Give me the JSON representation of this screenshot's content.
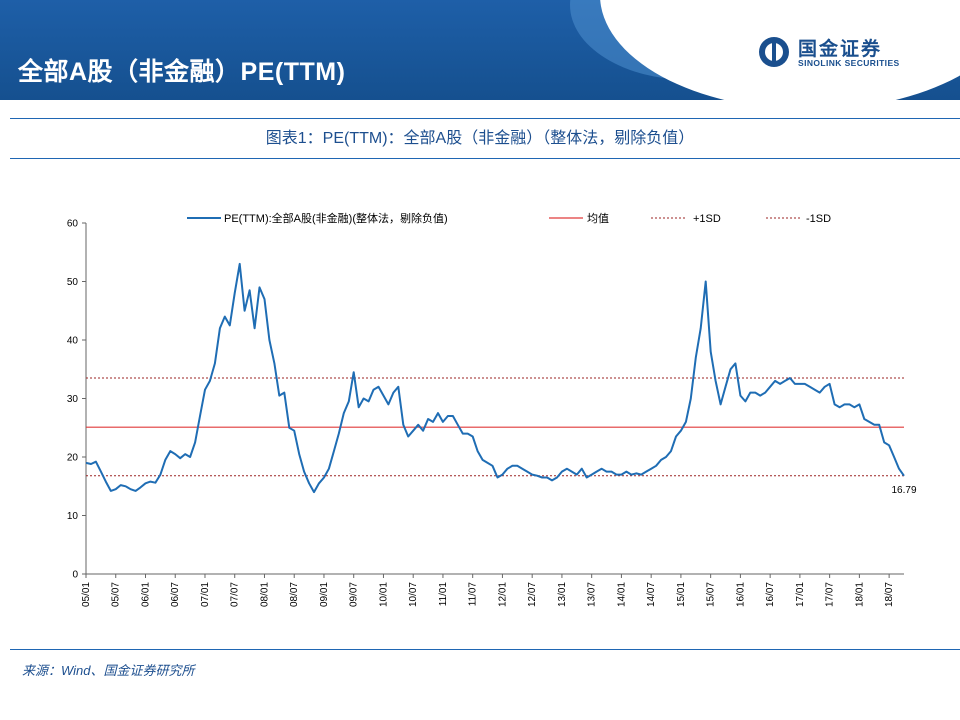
{
  "header": {
    "title": "全部A股（非金融）PE(TTM)",
    "logo_cn": "国金证券",
    "logo_en": "SINOLINK SECURITIES"
  },
  "source_note": "来源：Wind、国金证券研究所",
  "colors": {
    "series": "#1f6db4",
    "mean": "#e03a3a",
    "sd": "#9b2323",
    "banner": "#1e5fa8"
  },
  "chart_data": {
    "type": "line",
    "title": "图表1：PE(TTM)：全部A股（非金融）（整体法，剔除负值）",
    "xlabel": "",
    "ylabel": "",
    "ylim": [
      0,
      60
    ],
    "yticks": [
      0,
      10,
      20,
      30,
      40,
      50,
      60
    ],
    "x_range": [
      "2005-01",
      "2018-10"
    ],
    "xticks": [
      "05/01",
      "05/07",
      "06/01",
      "06/07",
      "07/01",
      "07/07",
      "08/01",
      "08/07",
      "09/01",
      "09/07",
      "10/01",
      "10/07",
      "11/01",
      "11/07",
      "12/01",
      "12/07",
      "13/01",
      "13/07",
      "14/01",
      "14/07",
      "15/01",
      "15/07",
      "16/01",
      "16/07",
      "17/01",
      "17/07",
      "18/01",
      "18/07"
    ],
    "legend": {
      "placement": "top",
      "entries": [
        "PE(TTM):全部A股(非金融)(整体法，剔除负值)",
        "均值",
        "+1SD",
        "-1SD"
      ]
    },
    "reference_lines": {
      "mean": 25.1,
      "plus_1sd": 33.5,
      "minus_1sd": 16.8
    },
    "last_value_label": "16.79",
    "series": [
      {
        "name": "PE(TTM):全部A股(非金融)(整体法，剔除负值)",
        "points": [
          [
            "2005-01",
            19.0
          ],
          [
            "2005-02",
            18.8
          ],
          [
            "2005-03",
            19.2
          ],
          [
            "2005-04",
            17.5
          ],
          [
            "2005-05",
            15.8
          ],
          [
            "2005-06",
            14.2
          ],
          [
            "2005-07",
            14.5
          ],
          [
            "2005-08",
            15.2
          ],
          [
            "2005-09",
            15.0
          ],
          [
            "2005-10",
            14.5
          ],
          [
            "2005-11",
            14.2
          ],
          [
            "2005-12",
            14.8
          ],
          [
            "2006-01",
            15.5
          ],
          [
            "2006-02",
            15.8
          ],
          [
            "2006-03",
            15.6
          ],
          [
            "2006-04",
            17.0
          ],
          [
            "2006-05",
            19.5
          ],
          [
            "2006-06",
            21.0
          ],
          [
            "2006-07",
            20.5
          ],
          [
            "2006-08",
            19.8
          ],
          [
            "2006-09",
            20.5
          ],
          [
            "2006-10",
            20.0
          ],
          [
            "2006-11",
            22.5
          ],
          [
            "2006-12",
            27.0
          ],
          [
            "2007-01",
            31.5
          ],
          [
            "2007-02",
            33.0
          ],
          [
            "2007-03",
            36.0
          ],
          [
            "2007-04",
            42.0
          ],
          [
            "2007-05",
            44.0
          ],
          [
            "2007-06",
            42.5
          ],
          [
            "2007-07",
            48.0
          ],
          [
            "2007-08",
            53.0
          ],
          [
            "2007-09",
            45.0
          ],
          [
            "2007-10",
            48.5
          ],
          [
            "2007-11",
            42.0
          ],
          [
            "2007-12",
            49.0
          ],
          [
            "2008-01",
            47.0
          ],
          [
            "2008-02",
            40.0
          ],
          [
            "2008-03",
            36.0
          ],
          [
            "2008-04",
            30.5
          ],
          [
            "2008-05",
            31.0
          ],
          [
            "2008-06",
            25.0
          ],
          [
            "2008-07",
            24.5
          ],
          [
            "2008-08",
            20.5
          ],
          [
            "2008-09",
            17.5
          ],
          [
            "2008-10",
            15.5
          ],
          [
            "2008-11",
            14.0
          ],
          [
            "2008-12",
            15.5
          ],
          [
            "2009-01",
            16.5
          ],
          [
            "2009-02",
            18.0
          ],
          [
            "2009-03",
            21.0
          ],
          [
            "2009-04",
            24.0
          ],
          [
            "2009-05",
            27.5
          ],
          [
            "2009-06",
            29.5
          ],
          [
            "2009-07",
            34.5
          ],
          [
            "2009-08",
            28.5
          ],
          [
            "2009-09",
            30.0
          ],
          [
            "2009-10",
            29.5
          ],
          [
            "2009-11",
            31.5
          ],
          [
            "2009-12",
            32.0
          ],
          [
            "2010-01",
            30.5
          ],
          [
            "2010-02",
            29.0
          ],
          [
            "2010-03",
            31.0
          ],
          [
            "2010-04",
            32.0
          ],
          [
            "2010-05",
            25.5
          ],
          [
            "2010-06",
            23.5
          ],
          [
            "2010-07",
            24.5
          ],
          [
            "2010-08",
            25.5
          ],
          [
            "2010-09",
            24.5
          ],
          [
            "2010-10",
            26.5
          ],
          [
            "2010-11",
            26.0
          ],
          [
            "2010-12",
            27.5
          ],
          [
            "2011-01",
            26.0
          ],
          [
            "2011-02",
            27.0
          ],
          [
            "2011-03",
            27.0
          ],
          [
            "2011-04",
            25.5
          ],
          [
            "2011-05",
            24.0
          ],
          [
            "2011-06",
            24.0
          ],
          [
            "2011-07",
            23.5
          ],
          [
            "2011-08",
            21.0
          ],
          [
            "2011-09",
            19.5
          ],
          [
            "2011-10",
            19.0
          ],
          [
            "2011-11",
            18.5
          ],
          [
            "2011-12",
            16.5
          ],
          [
            "2012-01",
            17.0
          ],
          [
            "2012-02",
            18.0
          ],
          [
            "2012-03",
            18.5
          ],
          [
            "2012-04",
            18.5
          ],
          [
            "2012-05",
            18.0
          ],
          [
            "2012-06",
            17.5
          ],
          [
            "2012-07",
            17.0
          ],
          [
            "2012-08",
            16.8
          ],
          [
            "2012-09",
            16.5
          ],
          [
            "2012-10",
            16.5
          ],
          [
            "2012-11",
            16.0
          ],
          [
            "2012-12",
            16.5
          ],
          [
            "2013-01",
            17.5
          ],
          [
            "2013-02",
            18.0
          ],
          [
            "2013-03",
            17.5
          ],
          [
            "2013-04",
            17.0
          ],
          [
            "2013-05",
            18.0
          ],
          [
            "2013-06",
            16.5
          ],
          [
            "2013-07",
            17.0
          ],
          [
            "2013-08",
            17.5
          ],
          [
            "2013-09",
            18.0
          ],
          [
            "2013-10",
            17.5
          ],
          [
            "2013-11",
            17.5
          ],
          [
            "2013-12",
            17.0
          ],
          [
            "2014-01",
            17.0
          ],
          [
            "2014-02",
            17.5
          ],
          [
            "2014-03",
            17.0
          ],
          [
            "2014-04",
            17.2
          ],
          [
            "2014-05",
            17.0
          ],
          [
            "2014-06",
            17.5
          ],
          [
            "2014-07",
            18.0
          ],
          [
            "2014-08",
            18.5
          ],
          [
            "2014-09",
            19.5
          ],
          [
            "2014-10",
            20.0
          ],
          [
            "2014-11",
            21.0
          ],
          [
            "2014-12",
            23.5
          ],
          [
            "2015-01",
            24.5
          ],
          [
            "2015-02",
            26.0
          ],
          [
            "2015-03",
            30.0
          ],
          [
            "2015-04",
            37.0
          ],
          [
            "2015-05",
            42.0
          ],
          [
            "2015-06",
            50.0
          ],
          [
            "2015-07",
            38.0
          ],
          [
            "2015-08",
            33.0
          ],
          [
            "2015-09",
            29.0
          ],
          [
            "2015-10",
            32.0
          ],
          [
            "2015-11",
            35.0
          ],
          [
            "2015-12",
            36.0
          ],
          [
            "2016-01",
            30.5
          ],
          [
            "2016-02",
            29.5
          ],
          [
            "2016-03",
            31.0
          ],
          [
            "2016-04",
            31.0
          ],
          [
            "2016-05",
            30.5
          ],
          [
            "2016-06",
            31.0
          ],
          [
            "2016-07",
            32.0
          ],
          [
            "2016-08",
            33.0
          ],
          [
            "2016-09",
            32.5
          ],
          [
            "2016-10",
            33.0
          ],
          [
            "2016-11",
            33.5
          ],
          [
            "2016-12",
            32.5
          ],
          [
            "2017-01",
            32.5
          ],
          [
            "2017-02",
            32.5
          ],
          [
            "2017-03",
            32.0
          ],
          [
            "2017-04",
            31.5
          ],
          [
            "2017-05",
            31.0
          ],
          [
            "2017-06",
            32.0
          ],
          [
            "2017-07",
            32.5
          ],
          [
            "2017-08",
            29.0
          ],
          [
            "2017-09",
            28.5
          ],
          [
            "2017-10",
            29.0
          ],
          [
            "2017-11",
            29.0
          ],
          [
            "2017-12",
            28.5
          ],
          [
            "2018-01",
            29.0
          ],
          [
            "2018-02",
            26.5
          ],
          [
            "2018-03",
            26.0
          ],
          [
            "2018-04",
            25.5
          ],
          [
            "2018-05",
            25.5
          ],
          [
            "2018-06",
            22.5
          ],
          [
            "2018-07",
            22.0
          ],
          [
            "2018-08",
            20.0
          ],
          [
            "2018-09",
            18.0
          ],
          [
            "2018-10",
            16.79
          ]
        ]
      }
    ]
  }
}
